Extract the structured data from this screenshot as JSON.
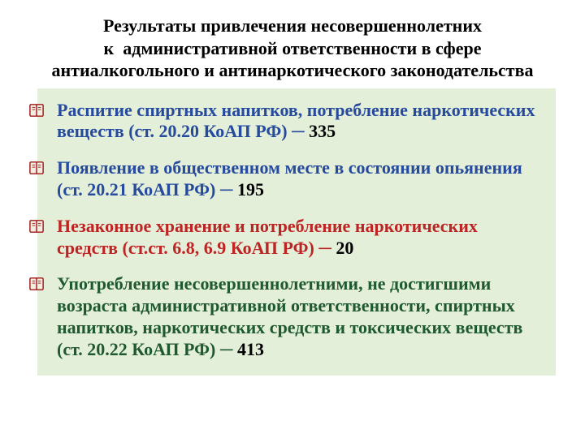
{
  "title": {
    "lines": [
      "Результаты привлечения несовершеннолетних",
      "к  административной ответственности в сфере",
      "антиалкогольного и антинаркотического законодательства"
    ],
    "color": "#000000",
    "fontsize": 22
  },
  "content": {
    "background_color": "#e4efd9",
    "fontsize": 22,
    "items": [
      {
        "desc": "Распитие спиртных напитков, потребление наркотических веществ (ст. 20.20 КоАП РФ) ─ ",
        "desc_color": "#254a9e",
        "num": "335",
        "num_color": "#000000"
      },
      {
        "desc": "Появление в общественном месте в состоянии опьянения (ст. 20.21 КоАП РФ) ─ ",
        "desc_color": "#254a9e",
        "num": "195",
        "num_color": "#000000"
      },
      {
        "desc": "Незаконное хранение и потребление наркотических средств (ст.ст. 6.8, 6.9 КоАП РФ) ─ ",
        "desc_color": "#bd2424",
        "num": "20",
        "num_color": "#000000"
      },
      {
        "desc": "Употребление несовершеннолетними, не достигшими возраста административной ответственности, спиртных напитков, наркотических средств и токсических веществ (ст. 20.22 КоАП РФ) ─ ",
        "desc_color": "#1f5930",
        "num": "413",
        "num_color": "#000000"
      }
    ]
  },
  "bullet": {
    "size": 18,
    "outer_color": "#a01818",
    "inner_color": "#f2efe2"
  }
}
